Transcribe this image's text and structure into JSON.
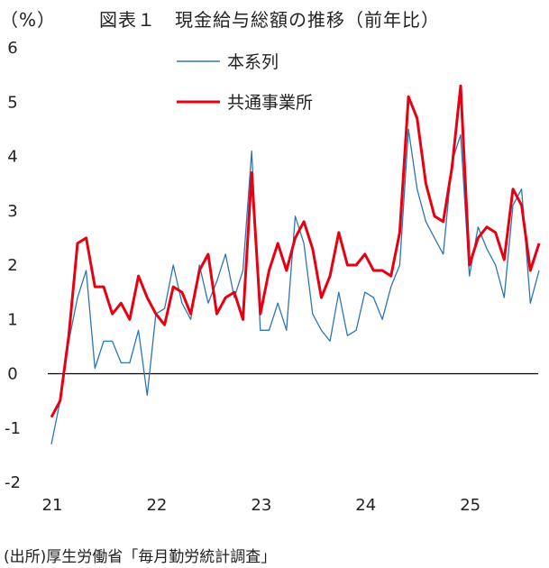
{
  "chart_data": {
    "type": "line",
    "unit_label": "（%）",
    "title": "図表１　現金給与総額の推移（前年比）",
    "source": "(出所)厚生労働省「毎月勤労統計調査」",
    "ylim": [
      -2,
      6
    ],
    "yticks": [
      "6",
      "5",
      "4",
      "3",
      "2",
      "1",
      "0",
      "-1",
      "-2"
    ],
    "xticks": [
      "21",
      "22",
      "23",
      "24",
      "25"
    ],
    "x_start_year": 21,
    "months": 57,
    "legend_position": "top-center",
    "series": [
      {
        "name": "本系列",
        "color": "#2e75b6",
        "values": [
          -1.3,
          -0.5,
          0.6,
          1.4,
          1.9,
          0.1,
          0.6,
          0.6,
          0.2,
          0.2,
          0.8,
          -0.4,
          1.1,
          1.2,
          2.0,
          1.3,
          1.0,
          2.0,
          1.3,
          1.7,
          2.2,
          1.4,
          1.9,
          4.1,
          0.8,
          0.8,
          1.3,
          0.8,
          2.9,
          2.4,
          1.1,
          0.8,
          0.6,
          1.5,
          0.7,
          0.8,
          1.5,
          1.4,
          1.0,
          1.6,
          2.0,
          4.5,
          3.4,
          2.8,
          2.5,
          2.2,
          3.9,
          4.4,
          1.8,
          2.7,
          2.3,
          2.0,
          1.4,
          3.1,
          3.4,
          1.3,
          1.9
        ]
      },
      {
        "name": "共通事業所",
        "color": "#e60012",
        "values": [
          -0.8,
          -0.5,
          0.7,
          2.4,
          2.5,
          1.6,
          1.6,
          1.1,
          1.3,
          1.0,
          1.8,
          1.4,
          1.1,
          0.9,
          1.6,
          1.5,
          1.1,
          1.9,
          2.2,
          1.1,
          1.4,
          1.5,
          1.0,
          3.7,
          1.1,
          1.9,
          2.4,
          1.9,
          2.5,
          2.8,
          2.3,
          1.4,
          1.8,
          2.6,
          2.0,
          2.0,
          2.2,
          1.9,
          1.9,
          1.8,
          2.6,
          5.1,
          4.7,
          3.5,
          2.9,
          2.8,
          3.8,
          5.3,
          2.0,
          2.5,
          2.7,
          2.6,
          2.1,
          3.4,
          3.1,
          1.9,
          2.4
        ]
      }
    ]
  }
}
